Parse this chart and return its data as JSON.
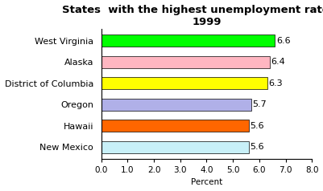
{
  "title": "States  with the highest unemployment rates in\n1999",
  "categories": [
    "New Mexico",
    "Hawaii",
    "Oregon",
    "District of Columbia",
    "Alaska",
    "West Virginia"
  ],
  "values": [
    5.6,
    5.6,
    5.7,
    6.3,
    6.4,
    6.6
  ],
  "bar_colors": [
    "#c8f0f8",
    "#ff6600",
    "#b0b0e8",
    "#ffff00",
    "#ffb6c1",
    "#00ff00"
  ],
  "bar_edgecolor": "#000000",
  "xlim": [
    0,
    8.0
  ],
  "xticks": [
    0.0,
    1.0,
    2.0,
    3.0,
    4.0,
    5.0,
    6.0,
    7.0,
    8.0
  ],
  "xlabel": "Percent",
  "background_color": "#ffffff",
  "title_fontsize": 9.5,
  "label_fontsize": 8,
  "tick_fontsize": 7.5,
  "value_fontsize": 8
}
